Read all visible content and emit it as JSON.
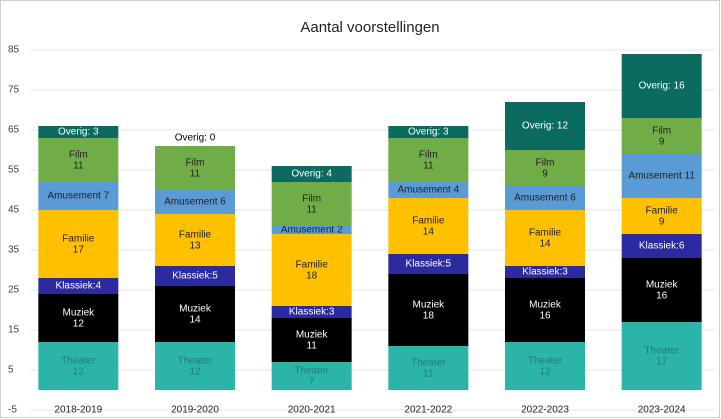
{
  "chart_data": {
    "type": "stacked_bar",
    "title": "Aantal voorstellingen",
    "categories": [
      "2018-2019",
      "2019-2020",
      "2020-2021",
      "2021-2022",
      "2022-2023",
      "2023-2024"
    ],
    "ylim": [
      -5,
      85
    ],
    "yticks": [
      -5,
      5,
      15,
      25,
      35,
      45,
      55,
      65,
      75,
      85
    ],
    "grid": true,
    "series": [
      {
        "color": "#2ab5a8",
        "values": [
          12,
          12,
          7,
          11,
          12,
          17
        ],
        "value_labels": [
          "Theater\n12",
          "Theater\n12",
          "Theater\n7",
          "Theater\n11",
          "Theater\n12",
          "Theater\n17"
        ]
      },
      {
        "color": "#000000",
        "values": [
          12,
          14,
          11,
          18,
          16,
          16
        ],
        "value_labels": [
          "Muziek\n12",
          "Muziek\n14",
          "Muziek\n11",
          "Muziek\n18",
          "Muziek\n16",
          "Muziek\n16"
        ]
      },
      {
        "color": "#2b2b9f",
        "values": [
          4,
          5,
          3,
          5,
          3,
          6
        ],
        "value_labels": [
          "Klassiek:4",
          "Klassiek:5",
          "Klassiek:3",
          "Klassiek:5",
          "Klassiek:3",
          "Klassiek:6"
        ]
      },
      {
        "color": "#ffc000",
        "values": [
          17,
          13,
          18,
          14,
          14,
          9
        ],
        "value_labels": [
          "Familie\n17",
          "Familie\n13",
          "Familie\n18",
          "Familie\n14",
          "Familie\n14",
          "Familie\n9"
        ]
      },
      {
        "color": "#5b9bd5",
        "values": [
          7,
          6,
          2,
          4,
          6,
          11
        ],
        "value_labels": [
          "Amusement 7",
          "Amusement 6",
          "Amusement 2",
          "Amusement 4",
          "Amusement 6",
          "Amusement 11"
        ]
      },
      {
        "color": "#70ad47",
        "values": [
          11,
          11,
          11,
          11,
          9,
          9
        ],
        "value_labels": [
          "Film\n11",
          "Film\n11",
          "Film\n11",
          "Film\n11",
          "Film\n9",
          "Film\n9"
        ]
      },
      {
        "color": "#0b6b5e",
        "values": [
          3,
          0,
          4,
          3,
          12,
          16
        ],
        "value_labels": [
          "Overig: 3",
          "Overig: 0",
          "Overig: 4",
          "Overig: 3",
          "Overig: 12",
          "Overig: 16"
        ]
      }
    ]
  }
}
